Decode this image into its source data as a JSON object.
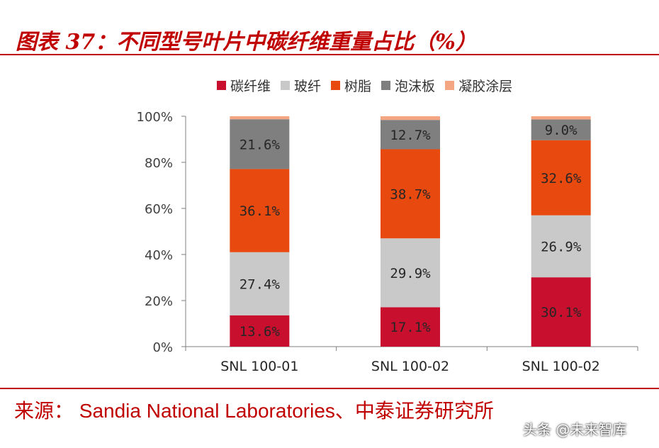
{
  "header": {
    "title": "图表 37：不同型号叶片中碳纤维重量占比（%）"
  },
  "footer": {
    "source": "来源：  Sandia National Laboratories、中泰证券研究所",
    "watermark": "头条 @未来智库"
  },
  "colors": {
    "accent": "#c00000",
    "carbon_fiber": "#c8102e",
    "glass_fiber": "#c9c9c9",
    "resin": "#e8490f",
    "foam": "#7f7f7f",
    "gel_coat": "#f4a582"
  },
  "chart_data": {
    "type": "bar",
    "stacked": true,
    "percent": true,
    "categories": [
      "SNL 100-01",
      "SNL 100-02",
      "SNL 100-02"
    ],
    "series": [
      {
        "name": "碳纤维",
        "values": [
          13.6,
          17.1,
          30.1
        ],
        "color": "#c8102e",
        "labels": [
          "13.6%",
          "17.1%",
          "30.1%"
        ]
      },
      {
        "name": "玻纤",
        "values": [
          27.4,
          29.9,
          26.9
        ],
        "color": "#c9c9c9",
        "labels": [
          "27.4%",
          "29.9%",
          "26.9%"
        ]
      },
      {
        "name": "树脂",
        "values": [
          36.1,
          38.7,
          32.6
        ],
        "color": "#e8490f",
        "labels": [
          "36.1%",
          "38.7%",
          "32.6%"
        ]
      },
      {
        "name": "泡沫板",
        "values": [
          21.6,
          12.7,
          9.0
        ],
        "color": "#7f7f7f",
        "labels": [
          "21.6%",
          "12.7%",
          "9.0%"
        ]
      },
      {
        "name": "凝胶涂层",
        "values": [
          1.3,
          1.6,
          1.4
        ],
        "color": "#f4a582",
        "labels": [
          "",
          "",
          ""
        ]
      }
    ],
    "yticks": [
      "0%",
      "20%",
      "40%",
      "60%",
      "80%",
      "100%"
    ],
    "ylim": [
      0,
      100
    ],
    "legend_position": "top",
    "grid": false
  }
}
